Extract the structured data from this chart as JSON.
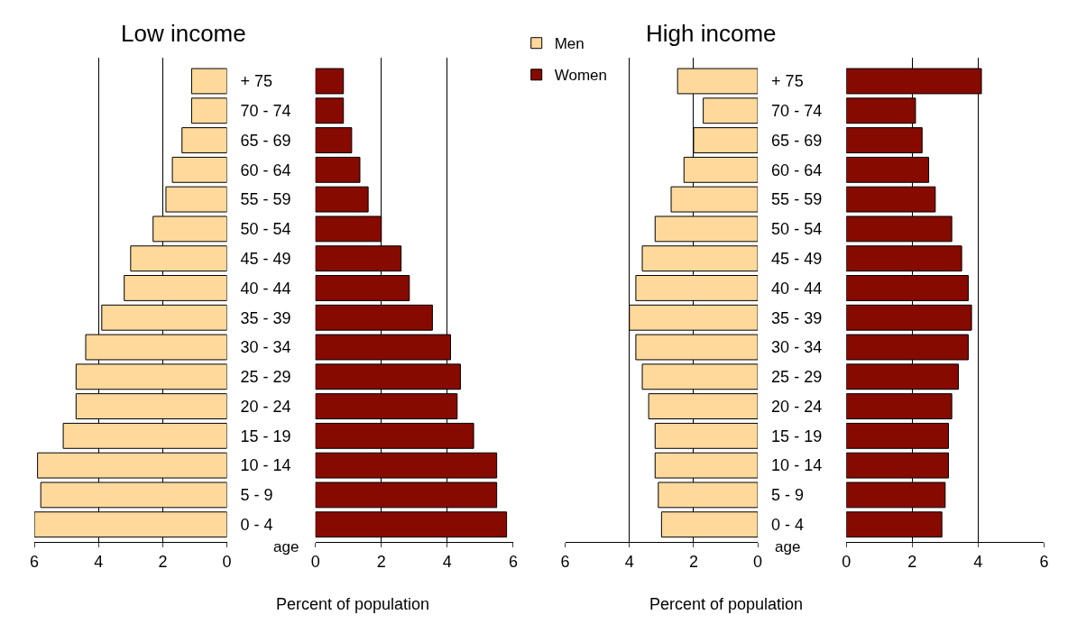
{
  "chart_data": [
    {
      "type": "bar",
      "orientation": "horizontal",
      "title": "Low income",
      "xlabel": "Percent of population",
      "annotations": [
        "age"
      ],
      "categories": [
        "+ 75",
        "70 - 74",
        "65 - 69",
        "60 - 64",
        "55 - 59",
        "50 - 54",
        "45 - 49",
        "40 - 44",
        "35 - 39",
        "30 - 34",
        "25 - 29",
        "20 - 24",
        "15 - 19",
        "10 - 14",
        "5 - 9",
        "0 - 4"
      ],
      "series": [
        {
          "name": "Men",
          "color": "#ffd99b",
          "values": [
            1.1,
            1.1,
            1.4,
            1.7,
            1.9,
            2.3,
            3.0,
            3.2,
            3.9,
            4.4,
            4.7,
            4.7,
            5.1,
            5.9,
            5.8,
            6.0
          ]
        }
      ],
      "xlim": [
        6,
        0
      ],
      "xticks": [
        6,
        4,
        2,
        0
      ],
      "grid": "x"
    },
    {
      "type": "bar",
      "orientation": "horizontal",
      "tick_labels": "x",
      "legend": "top right",
      "categories": [
        "+ 75",
        "70 - 74",
        "65 - 69",
        "60 - 64",
        "55 - 59",
        "50 - 54",
        "45 - 49",
        "40 - 44",
        "35 - 39",
        "30 - 34",
        "25 - 29",
        "20 - 24",
        "15 - 19",
        "10 - 14",
        "5 - 9",
        "0 - 4"
      ],
      "series": [
        {
          "name": "Women",
          "color": "#870a00",
          "values": [
            0.85,
            0.85,
            1.1,
            1.35,
            1.6,
            2.0,
            2.6,
            2.85,
            3.55,
            4.1,
            4.4,
            4.3,
            4.8,
            5.5,
            5.5,
            5.8
          ]
        }
      ],
      "xlim": [
        0,
        6
      ],
      "xticks": [
        0,
        2,
        4,
        6
      ],
      "grid": "x"
    },
    {
      "type": "bar",
      "orientation": "horizontal",
      "title": "High income",
      "xlabel": "Percent of population",
      "annotations": [
        "age"
      ],
      "categories": [
        "+ 75",
        "70 - 74",
        "65 - 69",
        "60 - 64",
        "55 - 59",
        "50 - 54",
        "45 - 49",
        "40 - 44",
        "35 - 39",
        "30 - 34",
        "25 - 29",
        "20 - 24",
        "15 - 19",
        "10 - 14",
        "5 - 9",
        "0 - 4"
      ],
      "series": [
        {
          "name": "Men",
          "color": "#ffd99b",
          "values": [
            2.5,
            1.7,
            2.0,
            2.3,
            2.7,
            3.2,
            3.6,
            3.8,
            4.0,
            3.8,
            3.6,
            3.4,
            3.2,
            3.2,
            3.1,
            3.0
          ]
        }
      ],
      "xlim": [
        6,
        0
      ],
      "xticks": [
        6,
        4,
        2,
        0
      ],
      "grid": "x"
    },
    {
      "type": "bar",
      "orientation": "horizontal",
      "tick_labels": "x",
      "categories": [
        "+ 75",
        "70 - 74",
        "65 - 69",
        "60 - 64",
        "55 - 59",
        "50 - 54",
        "45 - 49",
        "40 - 44",
        "35 - 39",
        "30 - 34",
        "25 - 29",
        "20 - 24",
        "15 - 19",
        "10 - 14",
        "5 - 9",
        "0 - 4"
      ],
      "series": [
        {
          "name": "Women",
          "color": "#870a00",
          "values": [
            4.1,
            2.1,
            2.3,
            2.5,
            2.7,
            3.2,
            3.5,
            3.7,
            3.8,
            3.7,
            3.4,
            3.2,
            3.1,
            3.1,
            3.0,
            2.9
          ]
        }
      ],
      "xlim": [
        0,
        6
      ],
      "xticks": [
        0,
        2,
        4,
        6
      ],
      "grid": "x"
    }
  ]
}
